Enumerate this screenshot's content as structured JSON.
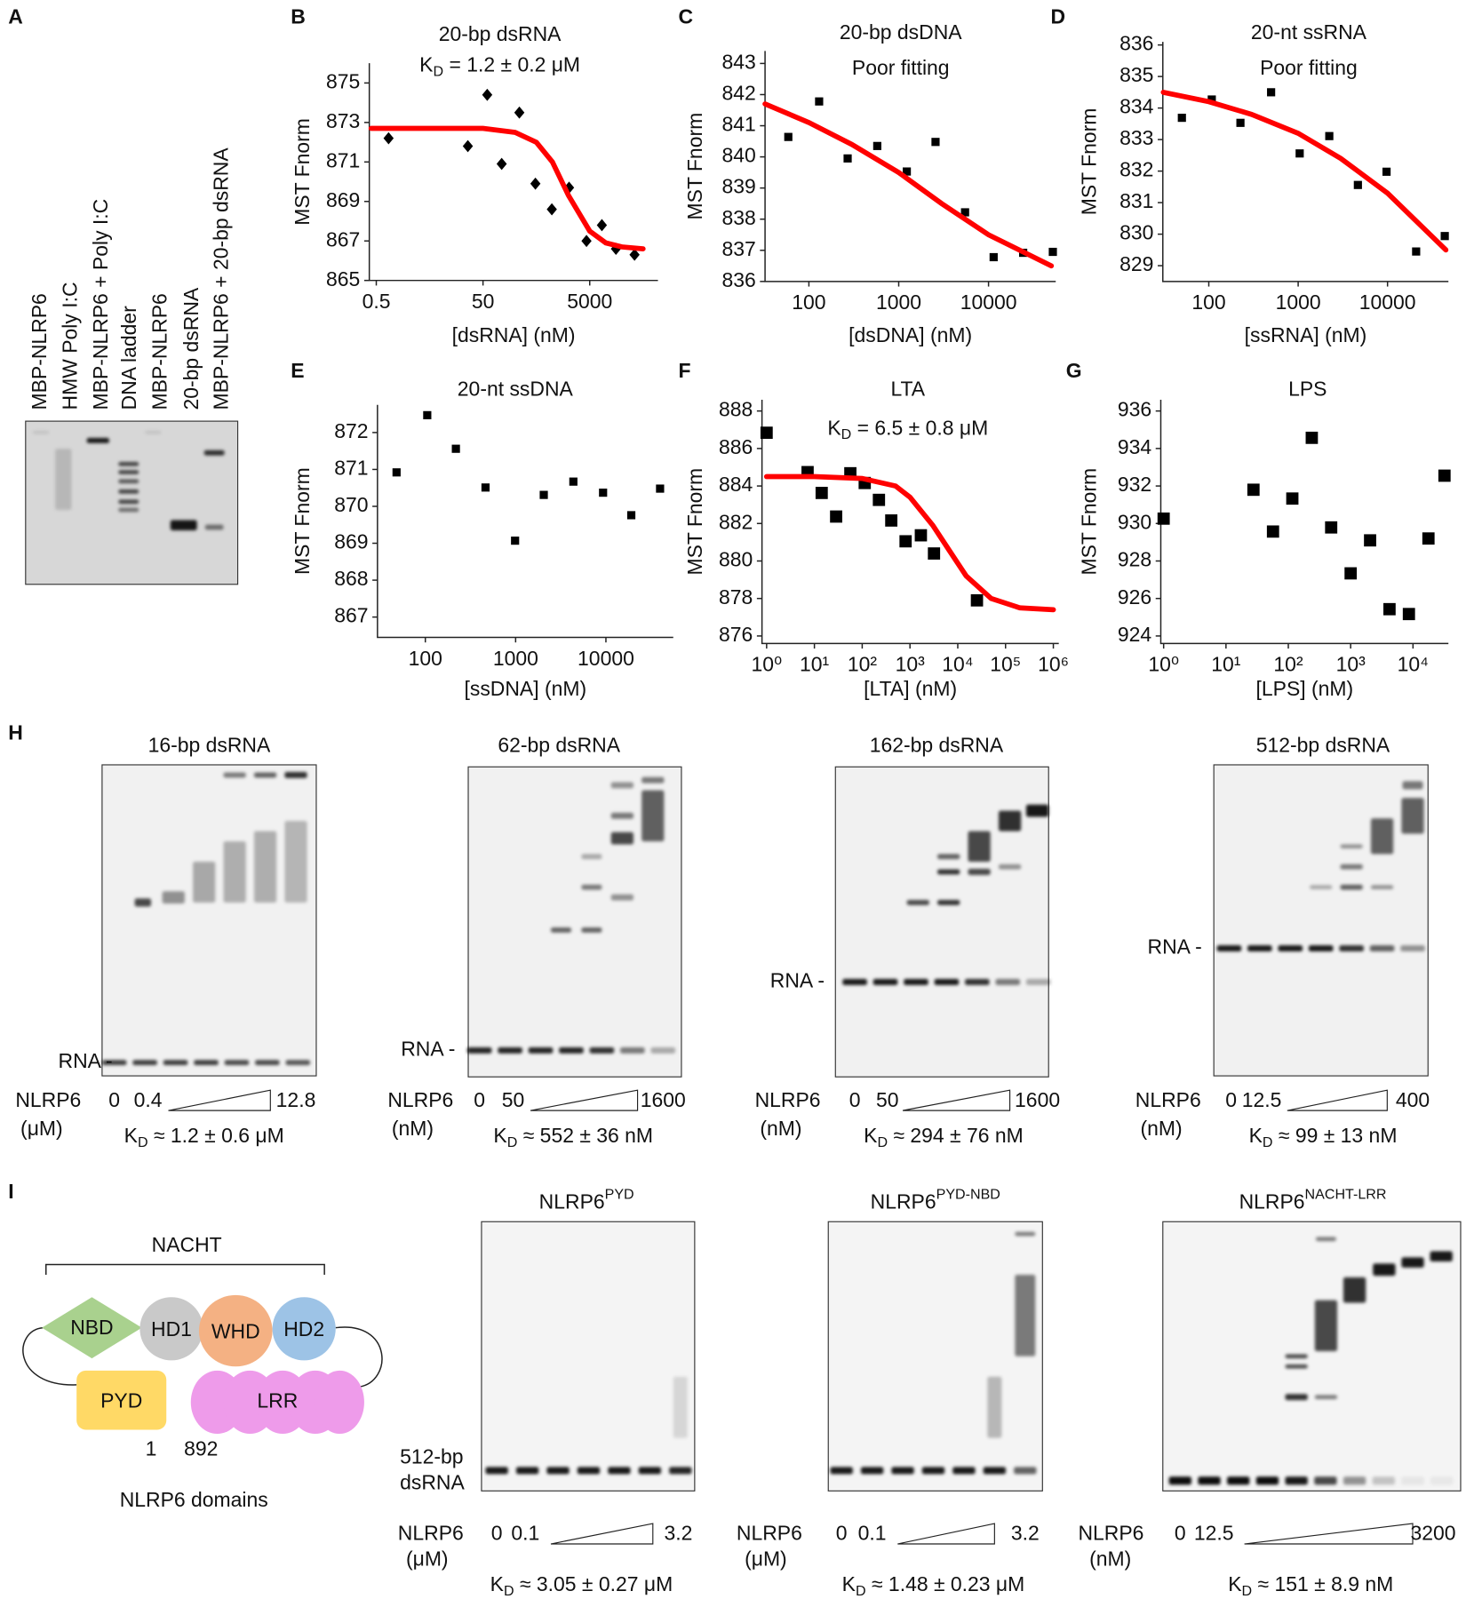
{
  "panel_letters": [
    "A",
    "B",
    "C",
    "D",
    "E",
    "F",
    "G",
    "H",
    "I"
  ],
  "chart_data": [
    {
      "type": "scatter",
      "title": "20-bp dsRNA",
      "subtitle": [
        "K",
        "D",
        " = 1.2 ± 0.2 μM"
      ],
      "xlabel": "[dsRNA] (nM)",
      "ylabel": "MST Fnorm",
      "xscale": "log",
      "xlim": [
        0.37,
        95000
      ],
      "ylim": [
        865,
        876
      ],
      "xticks": [
        0.5,
        50,
        5000
      ],
      "yticks": [
        865,
        867,
        869,
        871,
        873,
        875
      ],
      "series": [
        {
          "type": "scatter",
          "marker": "diamond",
          "color": "#000000",
          "x": [
            0.85,
            26,
            60,
            112,
            240,
            480,
            975,
            2050,
            4350,
            8450,
            15500,
            34600
          ],
          "values": [
            872.2,
            871.8,
            874.4,
            870.9,
            873.5,
            869.9,
            868.6,
            869.7,
            867.0,
            867.8,
            866.6,
            866.3
          ]
        },
        {
          "type": "line",
          "color": "#ff0000",
          "x": [
            0.4,
            5,
            50,
            200,
            500,
            1000,
            2000,
            5000,
            10000,
            20000,
            50000
          ],
          "values": [
            872.7,
            872.7,
            872.7,
            872.5,
            872.0,
            871.0,
            869.3,
            867.5,
            866.9,
            866.7,
            866.6
          ]
        }
      ]
    },
    {
      "type": "scatter",
      "title": "20-bp dsDNA",
      "subtitle": "Poor fitting",
      "xlabel": "[dsDNA] (nM)",
      "ylabel": "MST Fnorm",
      "xscale": "log",
      "xlim": [
        32.5,
        56000
      ],
      "ylim": [
        836,
        843.4
      ],
      "xticks": [
        100,
        1000,
        10000
      ],
      "yticks": [
        836,
        837,
        838,
        839,
        840,
        841,
        842,
        843
      ],
      "series": [
        {
          "type": "scatter",
          "marker": "square",
          "color": "#000000",
          "x": [
            59,
            130,
            270,
            577,
            1230,
            2570,
            5480,
            11400,
            24300,
            52000
          ],
          "values": [
            840.64,
            841.78,
            839.95,
            840.35,
            839.53,
            840.48,
            838.22,
            836.78,
            836.92,
            836.95
          ]
        },
        {
          "type": "line",
          "color": "#ff0000",
          "x": [
            32.5,
            100,
            300,
            1000,
            3000,
            10000,
            50000
          ],
          "values": [
            841.7,
            841.1,
            840.4,
            839.5,
            838.5,
            837.5,
            836.5
          ]
        }
      ]
    },
    {
      "type": "scatter",
      "title": "20-nt ssRNA",
      "subtitle": "Poor fitting",
      "xlabel": "[ssRNA] (nM)",
      "ylabel": "MST Fnorm",
      "xscale": "log",
      "xlim": [
        30.6,
        48000
      ],
      "ylim": [
        828.5,
        836.1
      ],
      "xticks": [
        100,
        1000,
        10000
      ],
      "yticks": [
        829,
        830,
        831,
        832,
        833,
        834,
        835,
        836
      ],
      "series": [
        {
          "type": "scatter",
          "marker": "square",
          "color": "#000000",
          "x": [
            50,
            108,
            226,
            498,
            1040,
            2230,
            4660,
            9750,
            20900,
            43700
          ],
          "values": [
            833.69,
            834.27,
            833.53,
            834.5,
            832.56,
            833.11,
            831.56,
            831.98,
            829.45,
            829.94
          ]
        },
        {
          "type": "line",
          "color": "#ff0000",
          "x": [
            31,
            100,
            300,
            1000,
            3000,
            10000,
            45000
          ],
          "values": [
            834.5,
            834.2,
            833.8,
            833.2,
            832.4,
            831.3,
            829.5
          ]
        }
      ]
    },
    {
      "type": "scatter",
      "title": "20-nt ssDNA",
      "xlabel": "[ssDNA] (nM)",
      "ylabel": "MST Fnorm",
      "xscale": "log",
      "xlim": [
        29.5,
        55700
      ],
      "ylim": [
        866.45,
        872.75
      ],
      "xticks": [
        100,
        1000,
        10000
      ],
      "yticks": [
        867,
        868,
        869,
        870,
        871,
        872
      ],
      "series": [
        {
          "type": "scatter",
          "marker": "square",
          "color": "#000000",
          "x": [
            48,
            105,
            218,
            464,
            986,
            2050,
            4360,
            9300,
            19100,
            39800
          ],
          "values": [
            870.92,
            872.47,
            871.56,
            870.51,
            869.07,
            870.31,
            870.67,
            870.37,
            869.76,
            870.48
          ]
        }
      ]
    },
    {
      "type": "scatter",
      "title": "LTA",
      "subtitle": [
        "K",
        "D",
        " = 6.5 ± 0.8 μM"
      ],
      "xlabel": "[LTA] (nM)",
      "ylabel": "MST Fnorm",
      "xscale": "log",
      "xlim": [
        0.8,
        1300000
      ],
      "ylim": [
        875.6,
        888.6
      ],
      "xticks": [
        {
          "value": 1,
          "label": "10⁰"
        },
        {
          "value": 10,
          "label": "10¹"
        },
        {
          "value": 100,
          "label": "10²"
        },
        {
          "value": 1000,
          "label": "10³"
        },
        {
          "value": 10000,
          "label": "10⁴"
        },
        {
          "value": 100000,
          "label": "10⁵"
        },
        {
          "value": 1000000,
          "label": "10⁶"
        }
      ],
      "yticks": [
        876,
        878,
        880,
        882,
        884,
        886,
        888
      ],
      "series": [
        {
          "type": "scatter",
          "marker": "square",
          "color": "#000000",
          "x": [
            1,
            7.2,
            14.2,
            28.5,
            56.5,
            113,
            224,
            406,
            809,
            1690,
            3180,
            25200
          ],
          "values": [
            886.84,
            884.74,
            883.63,
            882.37,
            884.68,
            884.16,
            883.26,
            882.16,
            881.05,
            881.37,
            880.4,
            877.9
          ]
        },
        {
          "type": "line",
          "color": "#ff0000",
          "x": [
            1,
            10,
            100,
            500,
            1000,
            3000,
            6500,
            15000,
            50000,
            200000,
            1000000
          ],
          "values": [
            884.5,
            884.5,
            884.4,
            884.0,
            883.4,
            881.9,
            880.6,
            879.2,
            878.0,
            877.5,
            877.4
          ]
        }
      ]
    },
    {
      "type": "scatter",
      "title": "LPS",
      "xlabel": "[LPS] (nM)",
      "ylabel": "MST Fnorm",
      "xscale": "log",
      "xlim": [
        0.9,
        37000
      ],
      "ylim": [
        923.6,
        936.6
      ],
      "xticks": [
        {
          "value": 1,
          "label": "10⁰"
        },
        {
          "value": 10,
          "label": "10¹"
        },
        {
          "value": 100,
          "label": "10²"
        },
        {
          "value": 1000,
          "label": "10³"
        },
        {
          "value": 10000,
          "label": "10⁴"
        }
      ],
      "yticks": [
        924,
        926,
        928,
        930,
        932,
        934,
        936
      ],
      "series": [
        {
          "type": "scatter",
          "marker": "square",
          "color": "#000000",
          "x": [
            1,
            27.6,
            56.8,
            116,
            238,
            487,
            1000,
            2050,
            4200,
            8600,
            17700,
            32000
          ],
          "values": [
            930.26,
            931.8,
            929.57,
            931.33,
            934.57,
            929.79,
            927.34,
            929.1,
            925.43,
            925.17,
            929.2,
            932.55
          ]
        }
      ]
    }
  ],
  "panel_a": {
    "lanes": [
      "MBP-NLRP6",
      "HMW Poly I:C",
      "MBP-NLRP6 + Poly I:C",
      "DNA ladder",
      "MBP-NLRP6",
      "20-bp dsRNA",
      "MBP-NLRP6 + 20-bp dsRNA"
    ]
  },
  "panel_h": {
    "gels": [
      {
        "title": "16-bp dsRNA",
        "band_label": "RNA -",
        "protein": "NLRP6",
        "unit": "(μM)",
        "low": [
          "0",
          "0.4"
        ],
        "high": "12.8",
        "kd": [
          "K",
          "D",
          " ≈ 1.2 ± 0.6 μM"
        ]
      },
      {
        "title": "62-bp dsRNA",
        "band_label": "RNA -",
        "protein": "NLRP6",
        "unit": "(nM)",
        "low": [
          "0",
          "50"
        ],
        "high": "1600",
        "kd": [
          "K",
          "D",
          " ≈ 552 ± 36 nM"
        ]
      },
      {
        "title": "162-bp dsRNA",
        "band_label": "RNA -",
        "protein": "NLRP6",
        "unit": "(nM)",
        "low": [
          "0",
          "50"
        ],
        "high": "1600",
        "kd": [
          "K",
          "D",
          " ≈ 294 ± 76 nM"
        ]
      },
      {
        "title": "512-bp dsRNA",
        "band_label": "RNA -",
        "protein": "NLRP6",
        "unit": "(nM)",
        "low": [
          "0",
          "12.5"
        ],
        "high": "400",
        "kd": [
          "K",
          "D",
          " ≈ 99 ± 13 nM"
        ]
      }
    ]
  },
  "panel_i": {
    "diagram": {
      "group": "NACHT",
      "domains": [
        "NBD",
        "HD1",
        "WHD",
        "HD2",
        "PYD",
        "LRR"
      ],
      "residues": [
        "1",
        "892"
      ],
      "caption": "NLRP6 domains"
    },
    "band_label": [
      "512-bp",
      "dsRNA"
    ],
    "gels": [
      {
        "title": [
          "NLRP6",
          "PYD"
        ],
        "protein": "NLRP6",
        "unit": "(μM)",
        "low": [
          "0",
          "0.1"
        ],
        "high": "3.2",
        "kd": [
          "K",
          "D",
          " ≈ 3.05 ± 0.27 μM"
        ]
      },
      {
        "title": [
          "NLRP6",
          "PYD-NBD"
        ],
        "protein": "NLRP6",
        "unit": "(μM)",
        "low": [
          "0",
          "0.1"
        ],
        "high": "3.2",
        "kd": [
          "K",
          "D",
          " ≈ 1.48 ± 0.23 μM"
        ]
      },
      {
        "title": [
          "NLRP6",
          "NACHT-LRR"
        ],
        "protein": "NLRP6",
        "unit": "(nM)",
        "low": [
          "0",
          "12.5"
        ],
        "high": "3200",
        "kd": [
          "K",
          "D",
          " ≈ 151 ± 8.9 nM"
        ]
      }
    ]
  }
}
